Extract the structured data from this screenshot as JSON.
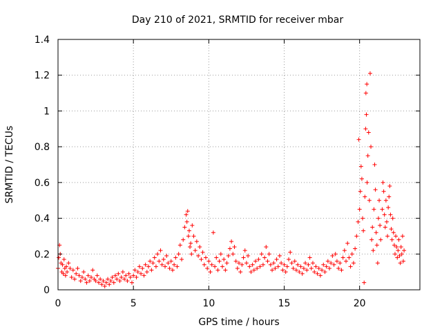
{
  "chart_data": {
    "type": "scatter",
    "title": "Day 210 of 2021, SRMTID for receiver mbar",
    "xlabel": "GPS time / hours",
    "ylabel": "SRMTID / TECUs",
    "xlim": [
      0,
      24
    ],
    "ylim": [
      0,
      1.4
    ],
    "xticks": [
      0,
      5,
      10,
      15,
      20
    ],
    "xtick_labels": [
      "0",
      "5",
      "10",
      "15",
      "20"
    ],
    "yticks": [
      0,
      0.2,
      0.4,
      0.6,
      0.8,
      1.0,
      1.2,
      1.4
    ],
    "ytick_labels": [
      "0",
      "0.2",
      "0.4",
      "0.6",
      "0.8",
      "1",
      "1.2",
      "1.4"
    ],
    "grid": true,
    "marker": "+",
    "color": "#ff0000",
    "series": [
      {
        "name": "SRMTID",
        "points": [
          [
            0.0,
            0.12
          ],
          [
            0.05,
            0.18
          ],
          [
            0.1,
            0.25
          ],
          [
            0.15,
            0.2
          ],
          [
            0.2,
            0.15
          ],
          [
            0.25,
            0.1
          ],
          [
            0.3,
            0.14
          ],
          [
            0.35,
            0.09
          ],
          [
            0.4,
            0.17
          ],
          [
            0.45,
            0.12
          ],
          [
            0.5,
            0.08
          ],
          [
            0.55,
            0.13
          ],
          [
            0.6,
            0.1
          ],
          [
            0.7,
            0.15
          ],
          [
            0.8,
            0.12
          ],
          [
            0.9,
            0.07
          ],
          [
            1.0,
            0.11
          ],
          [
            1.1,
            0.06
          ],
          [
            1.2,
            0.09
          ],
          [
            1.3,
            0.12
          ],
          [
            1.4,
            0.08
          ],
          [
            1.5,
            0.05
          ],
          [
            1.6,
            0.07
          ],
          [
            1.7,
            0.1
          ],
          [
            1.8,
            0.06
          ],
          [
            1.9,
            0.04
          ],
          [
            2.0,
            0.08
          ],
          [
            2.1,
            0.05
          ],
          [
            2.2,
            0.07
          ],
          [
            2.3,
            0.11
          ],
          [
            2.4,
            0.06
          ],
          [
            2.5,
            0.05
          ],
          [
            2.6,
            0.08
          ],
          [
            2.7,
            0.04
          ],
          [
            2.8,
            0.06
          ],
          [
            2.9,
            0.03
          ],
          [
            3.0,
            0.05
          ],
          [
            3.1,
            0.02
          ],
          [
            3.2,
            0.04
          ],
          [
            3.3,
            0.06
          ],
          [
            3.4,
            0.03
          ],
          [
            3.5,
            0.05
          ],
          [
            3.6,
            0.07
          ],
          [
            3.7,
            0.04
          ],
          [
            3.8,
            0.08
          ],
          [
            3.9,
            0.06
          ],
          [
            4.0,
            0.09
          ],
          [
            4.1,
            0.05
          ],
          [
            4.2,
            0.07
          ],
          [
            4.3,
            0.1
          ],
          [
            4.4,
            0.06
          ],
          [
            4.5,
            0.08
          ],
          [
            4.6,
            0.05
          ],
          [
            4.7,
            0.09
          ],
          [
            4.8,
            0.07
          ],
          [
            4.9,
            0.04
          ],
          [
            5.0,
            0.08
          ],
          [
            5.1,
            0.11
          ],
          [
            5.2,
            0.07
          ],
          [
            5.3,
            0.1
          ],
          [
            5.4,
            0.13
          ],
          [
            5.5,
            0.09
          ],
          [
            5.6,
            0.12
          ],
          [
            5.7,
            0.08
          ],
          [
            5.8,
            0.14
          ],
          [
            5.9,
            0.1
          ],
          [
            6.0,
            0.13
          ],
          [
            6.1,
            0.16
          ],
          [
            6.2,
            0.11
          ],
          [
            6.3,
            0.15
          ],
          [
            6.4,
            0.18
          ],
          [
            6.5,
            0.13
          ],
          [
            6.6,
            0.2
          ],
          [
            6.7,
            0.16
          ],
          [
            6.8,
            0.22
          ],
          [
            6.9,
            0.14
          ],
          [
            7.0,
            0.17
          ],
          [
            7.1,
            0.13
          ],
          [
            7.2,
            0.19
          ],
          [
            7.3,
            0.15
          ],
          [
            7.4,
            0.12
          ],
          [
            7.5,
            0.16
          ],
          [
            7.6,
            0.11
          ],
          [
            7.7,
            0.14
          ],
          [
            7.8,
            0.18
          ],
          [
            7.9,
            0.13
          ],
          [
            8.0,
            0.2
          ],
          [
            8.1,
            0.25
          ],
          [
            8.2,
            0.17
          ],
          [
            8.3,
            0.28
          ],
          [
            8.4,
            0.35
          ],
          [
            8.5,
            0.42
          ],
          [
            8.55,
            0.38
          ],
          [
            8.6,
            0.44
          ],
          [
            8.65,
            0.3
          ],
          [
            8.7,
            0.33
          ],
          [
            8.75,
            0.24
          ],
          [
            8.8,
            0.26
          ],
          [
            8.85,
            0.2
          ],
          [
            8.9,
            0.36
          ],
          [
            9.0,
            0.3
          ],
          [
            9.1,
            0.22
          ],
          [
            9.2,
            0.27
          ],
          [
            9.3,
            0.19
          ],
          [
            9.4,
            0.24
          ],
          [
            9.5,
            0.17
          ],
          [
            9.6,
            0.21
          ],
          [
            9.7,
            0.14
          ],
          [
            9.8,
            0.18
          ],
          [
            9.9,
            0.12
          ],
          [
            10.0,
            0.16
          ],
          [
            10.1,
            0.1
          ],
          [
            10.2,
            0.14
          ],
          [
            10.3,
            0.32
          ],
          [
            10.4,
            0.13
          ],
          [
            10.5,
            0.18
          ],
          [
            10.6,
            0.11
          ],
          [
            10.7,
            0.16
          ],
          [
            10.8,
            0.2
          ],
          [
            10.9,
            0.13
          ],
          [
            11.0,
            0.17
          ],
          [
            11.1,
            0.11
          ],
          [
            11.2,
            0.15
          ],
          [
            11.3,
            0.19
          ],
          [
            11.4,
            0.23
          ],
          [
            11.5,
            0.27
          ],
          [
            11.6,
            0.2
          ],
          [
            11.7,
            0.24
          ],
          [
            11.8,
            0.16
          ],
          [
            11.9,
            0.12
          ],
          [
            12.0,
            0.15
          ],
          [
            12.1,
            0.1
          ],
          [
            12.2,
            0.14
          ],
          [
            12.3,
            0.18
          ],
          [
            12.4,
            0.22
          ],
          [
            12.5,
            0.15
          ],
          [
            12.6,
            0.19
          ],
          [
            12.7,
            0.13
          ],
          [
            12.8,
            0.1
          ],
          [
            12.9,
            0.14
          ],
          [
            13.0,
            0.11
          ],
          [
            13.1,
            0.16
          ],
          [
            13.2,
            0.12
          ],
          [
            13.3,
            0.17
          ],
          [
            13.4,
            0.13
          ],
          [
            13.5,
            0.2
          ],
          [
            13.6,
            0.14
          ],
          [
            13.7,
            0.18
          ],
          [
            13.8,
            0.24
          ],
          [
            13.9,
            0.16
          ],
          [
            14.0,
            0.2
          ],
          [
            14.1,
            0.14
          ],
          [
            14.2,
            0.11
          ],
          [
            14.3,
            0.15
          ],
          [
            14.4,
            0.12
          ],
          [
            14.5,
            0.17
          ],
          [
            14.6,
            0.13
          ],
          [
            14.7,
            0.19
          ],
          [
            14.8,
            0.15
          ],
          [
            14.9,
            0.11
          ],
          [
            15.0,
            0.14
          ],
          [
            15.1,
            0.1
          ],
          [
            15.2,
            0.13
          ],
          [
            15.3,
            0.17
          ],
          [
            15.4,
            0.21
          ],
          [
            15.5,
            0.15
          ],
          [
            15.6,
            0.12
          ],
          [
            15.7,
            0.16
          ],
          [
            15.8,
            0.11
          ],
          [
            15.9,
            0.14
          ],
          [
            16.0,
            0.1
          ],
          [
            16.1,
            0.13
          ],
          [
            16.2,
            0.09
          ],
          [
            16.3,
            0.12
          ],
          [
            16.4,
            0.15
          ],
          [
            16.5,
            0.11
          ],
          [
            16.6,
            0.14
          ],
          [
            16.7,
            0.18
          ],
          [
            16.8,
            0.12
          ],
          [
            16.9,
            0.15
          ],
          [
            17.0,
            0.1
          ],
          [
            17.1,
            0.13
          ],
          [
            17.2,
            0.09
          ],
          [
            17.3,
            0.12
          ],
          [
            17.4,
            0.08
          ],
          [
            17.5,
            0.11
          ],
          [
            17.6,
            0.14
          ],
          [
            17.7,
            0.1
          ],
          [
            17.8,
            0.13
          ],
          [
            17.9,
            0.16
          ],
          [
            18.0,
            0.12
          ],
          [
            18.1,
            0.15
          ],
          [
            18.2,
            0.19
          ],
          [
            18.3,
            0.14
          ],
          [
            18.4,
            0.2
          ],
          [
            18.5,
            0.16
          ],
          [
            18.6,
            0.12
          ],
          [
            18.7,
            0.15
          ],
          [
            18.8,
            0.11
          ],
          [
            18.9,
            0.18
          ],
          [
            19.0,
            0.22
          ],
          [
            19.1,
            0.16
          ],
          [
            19.2,
            0.26
          ],
          [
            19.3,
            0.18
          ],
          [
            19.4,
            0.13
          ],
          [
            19.5,
            0.2
          ],
          [
            19.6,
            0.15
          ],
          [
            19.7,
            0.23
          ],
          [
            19.8,
            0.3
          ],
          [
            19.9,
            0.38
          ],
          [
            19.95,
            0.84
          ],
          [
            20.0,
            0.45
          ],
          [
            20.05,
            0.55
          ],
          [
            20.1,
            0.69
          ],
          [
            20.15,
            0.62
          ],
          [
            20.2,
            0.4
          ],
          [
            20.25,
            0.33
          ],
          [
            20.3,
            0.04
          ],
          [
            20.35,
            0.52
          ],
          [
            20.4,
            0.9
          ],
          [
            20.42,
            1.1
          ],
          [
            20.45,
            0.98
          ],
          [
            20.48,
            1.15
          ],
          [
            20.5,
            0.6
          ],
          [
            20.55,
            0.75
          ],
          [
            20.6,
            0.88
          ],
          [
            20.65,
            0.5
          ],
          [
            20.7,
            1.21
          ],
          [
            20.75,
            0.8
          ],
          [
            20.8,
            0.28
          ],
          [
            20.85,
            0.35
          ],
          [
            20.9,
            0.22
          ],
          [
            20.95,
            0.45
          ],
          [
            21.0,
            0.7
          ],
          [
            21.05,
            0.56
          ],
          [
            21.1,
            0.32
          ],
          [
            21.15,
            0.25
          ],
          [
            21.2,
            0.15
          ],
          [
            21.25,
            0.4
          ],
          [
            21.3,
            0.5
          ],
          [
            21.35,
            0.36
          ],
          [
            21.4,
            0.28
          ],
          [
            21.5,
            0.45
          ],
          [
            21.55,
            0.6
          ],
          [
            21.6,
            0.55
          ],
          [
            21.65,
            0.42
          ],
          [
            21.7,
            0.35
          ],
          [
            21.75,
            0.5
          ],
          [
            21.8,
            0.38
          ],
          [
            21.85,
            0.3
          ],
          [
            21.9,
            0.46
          ],
          [
            21.95,
            0.52
          ],
          [
            22.0,
            0.58
          ],
          [
            22.05,
            0.42
          ],
          [
            22.1,
            0.34
          ],
          [
            22.15,
            0.28
          ],
          [
            22.2,
            0.4
          ],
          [
            22.25,
            0.32
          ],
          [
            22.3,
            0.25
          ],
          [
            22.35,
            0.2
          ],
          [
            22.4,
            0.3
          ],
          [
            22.45,
            0.24
          ],
          [
            22.5,
            0.18
          ],
          [
            22.55,
            0.22
          ],
          [
            22.6,
            0.28
          ],
          [
            22.65,
            0.19
          ],
          [
            22.7,
            0.15
          ],
          [
            22.75,
            0.24
          ],
          [
            22.8,
            0.2
          ],
          [
            22.85,
            0.3
          ],
          [
            22.9,
            0.16
          ],
          [
            22.95,
            0.22
          ]
        ]
      }
    ]
  }
}
